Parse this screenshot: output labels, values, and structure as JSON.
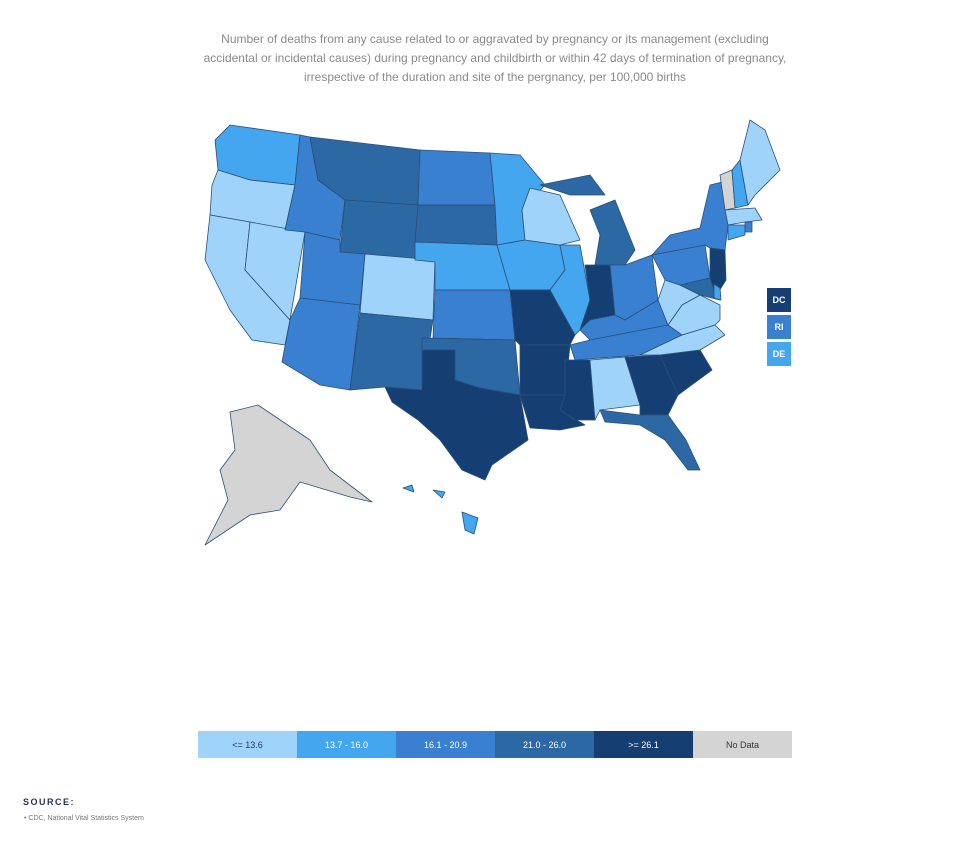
{
  "subtitle": "Number of deaths from any cause related to or aggravated by pregnancy or its management (excluding accidental or incidental causes) during pregnancy and childbirth or within 42 days of termination of pregnancy, irrespective of the duration and site of the pergnancy, per 100,000 births",
  "legend": [
    {
      "label": "<= 13.6",
      "color": "#a0d3fa",
      "text_color": "#1d3557"
    },
    {
      "label": "13.7 - 16.0",
      "color": "#43a6ee",
      "text_color": "#ffffff"
    },
    {
      "label": "16.1 - 20.9",
      "color": "#3a80d0",
      "text_color": "#ffffff"
    },
    {
      "label": "21.0 - 26.0",
      "color": "#2b68a4",
      "text_color": "#ffffff"
    },
    {
      "label": ">= 26.1",
      "color": "#153f73",
      "text_color": "#ffffff"
    },
    {
      "label": "No Data",
      "color": "#d4d4d4",
      "text_color": "#333333"
    }
  ],
  "small_states": [
    {
      "label": "DC",
      "category": 4
    },
    {
      "label": "RI",
      "category": 2
    },
    {
      "label": "DE",
      "category": 1
    }
  ],
  "state_categories": {
    "WA": 1,
    "OR": 0,
    "CA": 0,
    "NV": 0,
    "ID": 2,
    "MT": 3,
    "WY": 3,
    "UT": 2,
    "AZ": 2,
    "CO": 0,
    "NM": 3,
    "ND": 2,
    "SD": 3,
    "NE": 1,
    "KS": 2,
    "OK": 3,
    "TX": 4,
    "MN": 1,
    "IA": 1,
    "MO": 4,
    "AR": 4,
    "LA": 4,
    "WI": 0,
    "IL": 1,
    "MI": 3,
    "IN": 4,
    "OH": 2,
    "KY": 2,
    "TN": 2,
    "MS": 4,
    "AL": 0,
    "GA": 4,
    "FL": 3,
    "SC": 4,
    "NC": 0,
    "VA": 0,
    "WV": 0,
    "PA": 2,
    "NY": 2,
    "VT": 5,
    "NH": 1,
    "ME": 0,
    "MA": 0,
    "CT": 1,
    "RI": 2,
    "NJ": 4,
    "DE": 1,
    "MD": 3,
    "AK": 5,
    "HI": 1
  },
  "source": {
    "heading": "SOURCE:",
    "items": [
      "CDC, National Vital Statistics System"
    ]
  }
}
